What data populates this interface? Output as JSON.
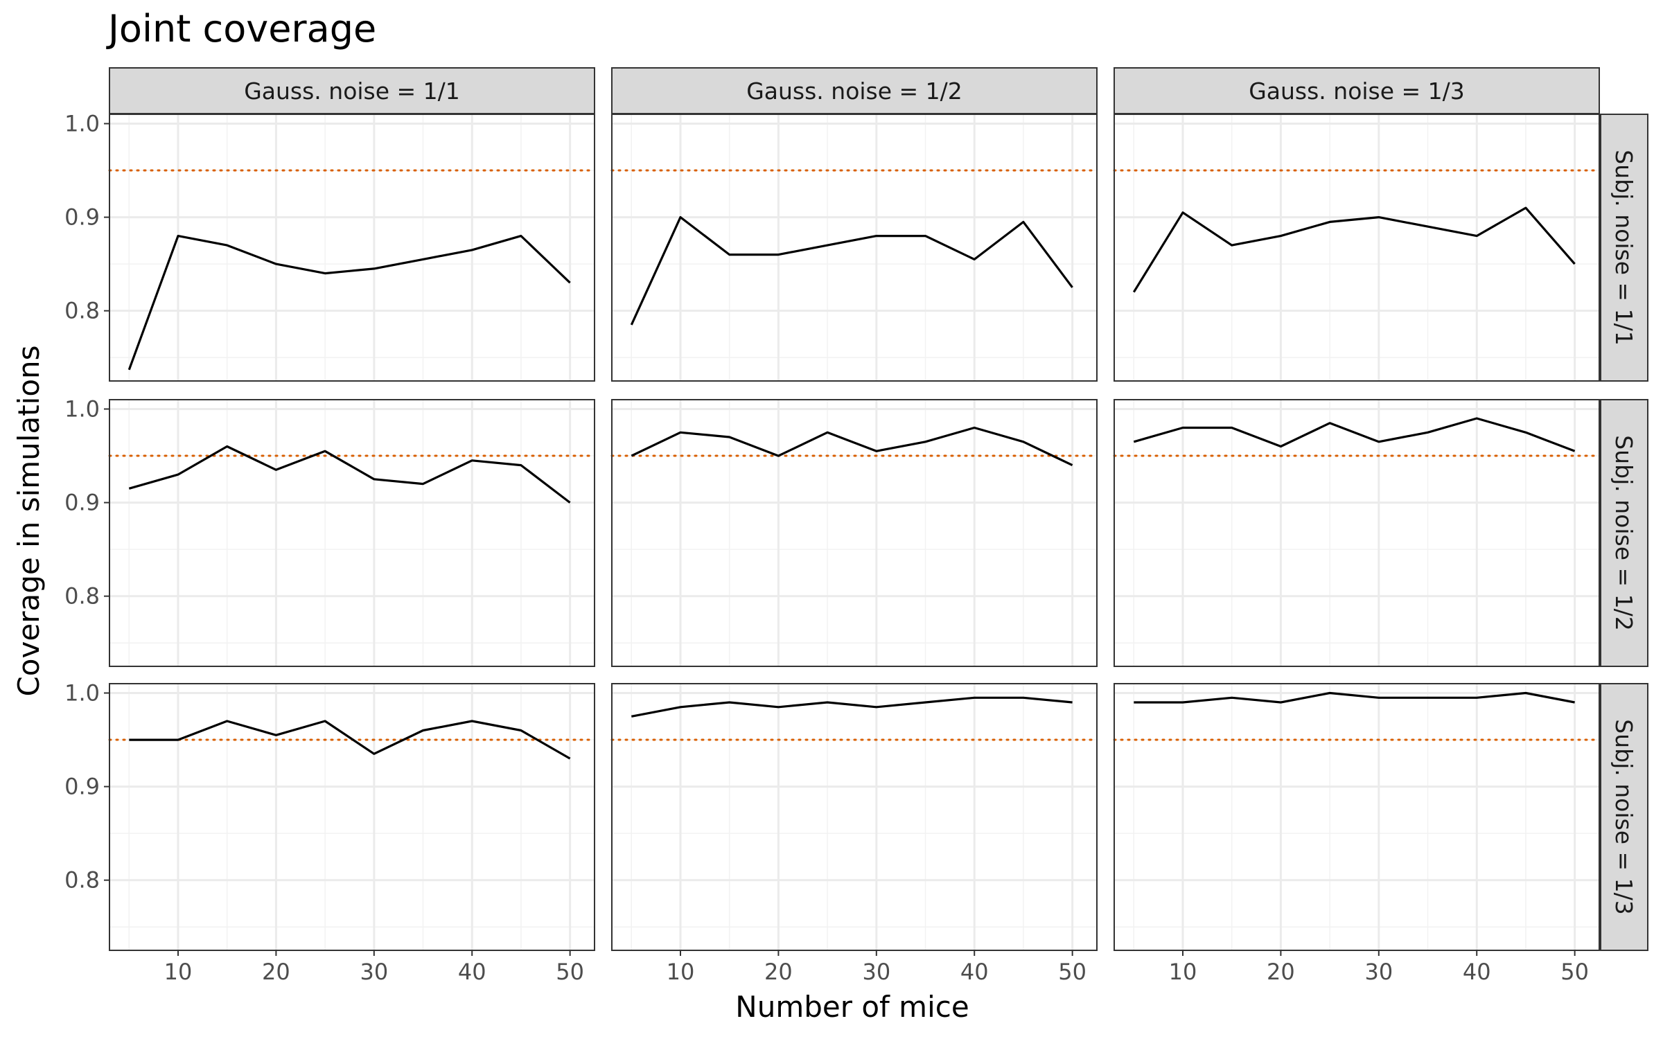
{
  "chart_data": {
    "type": "line",
    "title": "Joint coverage",
    "xlabel": "Number of mice",
    "ylabel": "Coverage in simulations",
    "xlim": [
      3,
      52.5
    ],
    "ylim": [
      0.725,
      1.01
    ],
    "x_ticks": [
      10,
      20,
      30,
      40,
      50
    ],
    "y_ticks": [
      0.8,
      0.9,
      1.0
    ],
    "y_tick_labels": [
      "0.8",
      "0.9",
      "1.0"
    ],
    "grid": true,
    "reference_line": {
      "y": 0.95,
      "color": "#d95f02",
      "style": "dotted"
    },
    "line_color": "#000000",
    "col_labels": [
      "Gauss. noise = 1/1",
      "Gauss. noise = 1/2",
      "Gauss. noise = 1/3"
    ],
    "row_labels": [
      "Subj. noise = 1/1",
      "Subj. noise = 1/2",
      "Subj. noise = 1/3"
    ],
    "x": [
      5,
      10,
      15,
      20,
      25,
      30,
      35,
      40,
      45,
      50
    ],
    "panels": [
      {
        "row": 0,
        "col": 0,
        "values": [
          0.737,
          0.88,
          0.87,
          0.85,
          0.84,
          0.845,
          0.855,
          0.865,
          0.88,
          0.83
        ]
      },
      {
        "row": 0,
        "col": 1,
        "values": [
          0.785,
          0.9,
          0.86,
          0.86,
          0.87,
          0.88,
          0.88,
          0.855,
          0.895,
          0.825
        ]
      },
      {
        "row": 0,
        "col": 2,
        "values": [
          0.82,
          0.905,
          0.87,
          0.88,
          0.895,
          0.9,
          0.89,
          0.88,
          0.91,
          0.85
        ]
      },
      {
        "row": 1,
        "col": 0,
        "values": [
          0.915,
          0.93,
          0.96,
          0.935,
          0.955,
          0.925,
          0.92,
          0.945,
          0.94,
          0.9
        ]
      },
      {
        "row": 1,
        "col": 1,
        "values": [
          0.95,
          0.975,
          0.97,
          0.95,
          0.975,
          0.955,
          0.965,
          0.98,
          0.965,
          0.94
        ]
      },
      {
        "row": 1,
        "col": 2,
        "values": [
          0.965,
          0.98,
          0.98,
          0.96,
          0.985,
          0.965,
          0.975,
          0.99,
          0.975,
          0.955
        ]
      },
      {
        "row": 2,
        "col": 0,
        "values": [
          0.95,
          0.95,
          0.97,
          0.955,
          0.97,
          0.935,
          0.96,
          0.97,
          0.96,
          0.93
        ]
      },
      {
        "row": 2,
        "col": 1,
        "values": [
          0.975,
          0.985,
          0.99,
          0.985,
          0.99,
          0.985,
          0.99,
          0.995,
          0.995,
          0.99
        ]
      },
      {
        "row": 2,
        "col": 2,
        "values": [
          0.99,
          0.99,
          0.995,
          0.99,
          1.0,
          0.995,
          0.995,
          0.995,
          1.0,
          0.99
        ]
      }
    ]
  }
}
